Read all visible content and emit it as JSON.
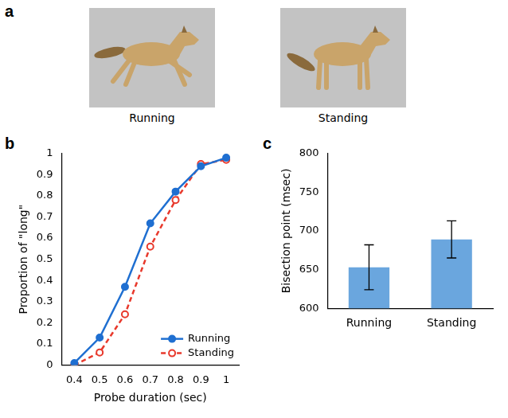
{
  "images": {
    "panel_label": "a",
    "captions": [
      "Running",
      "Standing"
    ]
  },
  "chart_data": [
    {
      "panel_label": "b",
      "type": "line",
      "x_label": "Probe duration (sec)",
      "y_label": "Proportion of \"long\"",
      "x": [
        0.4,
        0.5,
        0.6,
        0.7,
        0.8,
        0.9,
        1
      ],
      "series": [
        {
          "name": "Running",
          "color": "#1f6fd1",
          "marker": "filled circle",
          "line_style": "solid",
          "values": [
            0.01,
            0.13,
            0.37,
            0.67,
            0.82,
            0.94,
            0.98
          ]
        },
        {
          "name": "Standing",
          "color": "#e8392c",
          "marker": "open circle",
          "line_style": "dashed",
          "values": [
            0.0,
            0.06,
            0.24,
            0.56,
            0.78,
            0.95,
            0.97
          ]
        }
      ],
      "xlim": [
        0.35,
        1.05
      ],
      "xticks": [
        0.4,
        0.5,
        0.6,
        0.7,
        0.8,
        0.9,
        1
      ],
      "ylim": [
        0,
        1
      ],
      "yticks": [
        0,
        0.1,
        0.2,
        0.3,
        0.4,
        0.5,
        0.6,
        0.7,
        0.8,
        0.9,
        1
      ],
      "grid": false,
      "legend": "lower right"
    },
    {
      "panel_label": "c",
      "type": "bar",
      "y_label": "Bisection point (msec)",
      "categories": [
        "Running",
        "Standing"
      ],
      "values": [
        653,
        689
      ],
      "errors": [
        29,
        24
      ],
      "color": "#6aa6de",
      "ylim": [
        600,
        800
      ],
      "yticks": [
        600,
        650,
        700,
        750,
        800
      ],
      "grid": false
    }
  ]
}
